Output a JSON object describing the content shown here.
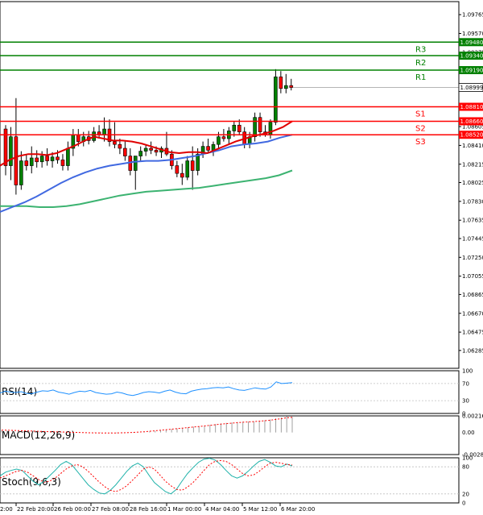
{
  "chart_data": [
    {
      "type": "candlestick",
      "ylim": [
        1.061,
        1.099
      ],
      "y_ticks": [
        "1.09765",
        "1.09570",
        "1.09375",
        "1.09180",
        "1.08990",
        "1.08795",
        "1.08605",
        "1.08410",
        "1.08215",
        "1.08025",
        "1.07830",
        "1.07635",
        "1.07445",
        "1.07250",
        "1.07055",
        "1.06865",
        "1.06670",
        "1.06475",
        "1.06285"
      ],
      "x_ticks": [
        "22 Feb 20:00",
        "26 Feb 00:00",
        "27 Feb 08:00",
        "28 Feb 16:00",
        "1 Mar 00:00",
        "4 Mar 04:00",
        "5 Mar 12:00",
        "6 Mar 20:00"
      ],
      "x_ticks_partial_left": "2:00",
      "current_price": "1.08999",
      "levels": [
        {
          "name": "R3",
          "value": 1.0948,
          "label": "1.09480",
          "color": "#008000"
        },
        {
          "name": "R2",
          "value": 1.0934,
          "label": "1.09340",
          "color": "#008000"
        },
        {
          "name": "R1",
          "value": 1.0919,
          "label": "1.09190",
          "color": "#008000"
        },
        {
          "name": "S1",
          "value": 1.0881,
          "label": "1.08810",
          "color": "#ff0000"
        },
        {
          "name": "S2",
          "value": 1.0866,
          "label": "1.08660",
          "color": "#ff0000"
        },
        {
          "name": "S3",
          "value": 1.0852,
          "label": "1.08520",
          "color": "#ff0000"
        }
      ],
      "candles": [
        [
          1.0858,
          1.0862,
          1.081,
          1.082
        ],
        [
          1.082,
          1.086,
          1.0805,
          1.085
        ],
        [
          1.085,
          1.089,
          1.079,
          1.08
        ],
        [
          1.08,
          1.0835,
          1.0795,
          1.0825
        ],
        [
          1.0825,
          1.0832,
          1.0815,
          1.082
        ],
        [
          1.082,
          1.084,
          1.0812,
          1.0828
        ],
        [
          1.0828,
          1.0836,
          1.0818,
          1.0824
        ],
        [
          1.0824,
          1.0835,
          1.0818,
          1.083
        ],
        [
          1.083,
          1.0838,
          1.082,
          1.0825
        ],
        [
          1.0825,
          1.0834,
          1.0818,
          1.0829
        ],
        [
          1.0829,
          1.0836,
          1.0822,
          1.0826
        ],
        [
          1.0826,
          1.0832,
          1.0815,
          1.082
        ],
        [
          1.082,
          1.0845,
          1.0815,
          1.0838
        ],
        [
          1.0838,
          1.0858,
          1.083,
          1.0852
        ],
        [
          1.0852,
          1.0858,
          1.084,
          1.0845
        ],
        [
          1.0845,
          1.0855,
          1.084,
          1.085
        ],
        [
          1.085,
          1.0856,
          1.0842,
          1.0846
        ],
        [
          1.0846,
          1.086,
          1.0844,
          1.0855
        ],
        [
          1.0855,
          1.0862,
          1.0848,
          1.0852
        ],
        [
          1.0852,
          1.087,
          1.0845,
          1.0858
        ],
        [
          1.0858,
          1.0868,
          1.084,
          1.0845
        ],
        [
          1.0845,
          1.0865,
          1.0838,
          1.0842
        ],
        [
          1.0842,
          1.0848,
          1.0832,
          1.0838
        ],
        [
          1.0838,
          1.0845,
          1.0825,
          1.083
        ],
        [
          1.083,
          1.0838,
          1.081,
          1.0815
        ],
        [
          1.0815,
          1.083,
          1.0795,
          1.083
        ],
        [
          1.083,
          1.084,
          1.0825,
          1.0835
        ],
        [
          1.0835,
          1.0842,
          1.083,
          1.0838
        ],
        [
          1.0838,
          1.0845,
          1.0832,
          1.0836
        ],
        [
          1.0836,
          1.084,
          1.083,
          1.0834
        ],
        [
          1.0834,
          1.084,
          1.0828,
          1.0838
        ],
        [
          1.0838,
          1.0855,
          1.083,
          1.0832
        ],
        [
          1.0832,
          1.0836,
          1.0816,
          1.082
        ],
        [
          1.082,
          1.0825,
          1.0808,
          1.0812
        ],
        [
          1.0812,
          1.0822,
          1.08,
          1.0808
        ],
        [
          1.0808,
          1.083,
          1.0805,
          1.0825
        ],
        [
          1.0825,
          1.084,
          1.0795,
          1.0815
        ],
        [
          1.0815,
          1.0838,
          1.081,
          1.0832
        ],
        [
          1.0832,
          1.0845,
          1.0828,
          1.084
        ],
        [
          1.084,
          1.0848,
          1.0834,
          1.0836
        ],
        [
          1.0836,
          1.0845,
          1.083,
          1.0842
        ],
        [
          1.0842,
          1.0855,
          1.0838,
          1.085
        ],
        [
          1.085,
          1.0858,
          1.0845,
          1.0848
        ],
        [
          1.0848,
          1.086,
          1.0842,
          1.0856
        ],
        [
          1.0856,
          1.0866,
          1.085,
          1.0862
        ],
        [
          1.0862,
          1.0868,
          1.0852,
          1.0855
        ],
        [
          1.0855,
          1.086,
          1.0838,
          1.0842
        ],
        [
          1.0842,
          1.0855,
          1.0838,
          1.085
        ],
        [
          1.085,
          1.0875,
          1.0845,
          1.087
        ],
        [
          1.087,
          1.0875,
          1.085,
          1.0855
        ],
        [
          1.0855,
          1.0862,
          1.085,
          1.0852
        ],
        [
          1.0852,
          1.0868,
          1.0848,
          1.0865
        ],
        [
          1.0865,
          1.092,
          1.0862,
          1.0912
        ],
        [
          1.0912,
          1.0918,
          1.0895,
          1.09
        ],
        [
          1.09,
          1.0915,
          1.0895,
          1.0903
        ],
        [
          1.0903,
          1.091,
          1.0898,
          1.0901
        ]
      ],
      "ma_red": [
        1.082,
        1.0826,
        1.083,
        1.0832,
        1.0832,
        1.0831,
        1.0833,
        1.0837,
        1.0841,
        1.0846,
        1.085,
        1.0848,
        1.0846,
        1.0846,
        1.0845,
        1.0843,
        1.084,
        1.0837,
        1.0834,
        1.0833,
        1.0834,
        1.0834,
        1.0833,
        1.0837,
        1.0841,
        1.0845,
        1.0848,
        1.0851,
        1.0853,
        1.0856,
        1.086,
        1.0866
      ],
      "ma_blue": [
        1.0772,
        1.0777,
        1.0782,
        1.0788,
        1.0795,
        1.0802,
        1.0808,
        1.0813,
        1.0817,
        1.082,
        1.0822,
        1.0824,
        1.0825,
        1.0825,
        1.0826,
        1.0828,
        1.083,
        1.0833,
        1.0836,
        1.084,
        1.0842,
        1.0843,
        1.0845,
        1.0849,
        1.0852
      ],
      "ma_green": [
        1.0778,
        1.0778,
        1.0778,
        1.0777,
        1.0777,
        1.0778,
        1.078,
        1.0783,
        1.0786,
        1.0789,
        1.0791,
        1.0793,
        1.0794,
        1.0795,
        1.0796,
        1.0797,
        1.0799,
        1.0801,
        1.0803,
        1.0805,
        1.0807,
        1.081,
        1.0815
      ]
    },
    {
      "type": "line",
      "name": "RSI(14)",
      "ylim": [
        0,
        100
      ],
      "y_ticks": [
        "100",
        "70",
        "30",
        "0"
      ],
      "color": "#1e90ff",
      "values": [
        48,
        52,
        50,
        49,
        51,
        47,
        46,
        50,
        53,
        52,
        55,
        50,
        48,
        45,
        49,
        52,
        51,
        54,
        49,
        47,
        45,
        46,
        50,
        48,
        44,
        42,
        45,
        49,
        51,
        50,
        48,
        52,
        55,
        50,
        47,
        46,
        52,
        55,
        57,
        58,
        60,
        61,
        60,
        62,
        58,
        55,
        54,
        57,
        60,
        58,
        57,
        62,
        74,
        70,
        71,
        72
      ]
    },
    {
      "type": "bar",
      "name": "MACD(12,26,9)",
      "ylim": [
        -0.002879,
        0.002165
      ],
      "y_ticks": [
        "0.002165",
        "0.00",
        "-0.002879"
      ],
      "histogram": [
        0.0003,
        0.00028,
        0.00025,
        0.0002,
        0.00018,
        0.00016,
        0.00015,
        0.00014,
        0.00012,
        0.00012,
        0.0001,
        8e-05,
        6e-05,
        4e-05,
        2e-05,
        0.0,
        -2e-05,
        -4e-05,
        -6e-05,
        -8e-05,
        -0.0001,
        -0.0001,
        -8e-05,
        -6e-05,
        -4e-05,
        2e-05,
        8e-05,
        0.00014,
        0.0002,
        0.00028,
        0.00036,
        0.00044,
        0.00052,
        0.0006,
        0.00068,
        0.00075,
        0.00082,
        0.0009,
        0.001,
        0.0011,
        0.00118,
        0.00125,
        0.0013,
        0.00135,
        0.0014,
        0.00142,
        0.00145,
        0.0015,
        0.0016,
        0.0017,
        0.00185,
        0.00195,
        0.0021,
        0.002
      ],
      "signal": [
        0.0003,
        0.00029,
        0.00027,
        0.00025,
        0.00022,
        0.0002,
        0.00017,
        0.00015,
        0.00012,
        0.0001,
        8e-05,
        6e-05,
        4e-05,
        2e-05,
        0.0,
        -2e-05,
        -4e-05,
        -5e-05,
        -6e-05,
        -7e-05,
        -7e-05,
        -6e-05,
        -4e-05,
        -2e-05,
        1e-05,
        5e-05,
        0.0001,
        0.00016,
        0.00022,
        0.00029,
        0.00036,
        0.00043,
        0.0005,
        0.00057,
        0.00064,
        0.00071,
        0.00078,
        0.00085,
        0.00093,
        0.00101,
        0.00109,
        0.00116,
        0.00122,
        0.00128,
        0.00133,
        0.00138,
        0.00142,
        0.00147,
        0.00153,
        0.0016,
        0.0017,
        0.0018,
        0.00192,
        0.00198
      ]
    },
    {
      "type": "line",
      "name": "Stoch(9,6,3)",
      "ylim": [
        0,
        100
      ],
      "y_ticks": [
        "100",
        "80",
        "20",
        "0"
      ],
      "series": [
        {
          "color": "#20b2aa",
          "values": [
            60,
            68,
            72,
            75,
            72,
            60,
            48,
            40,
            48,
            60,
            72,
            85,
            92,
            85,
            70,
            55,
            40,
            30,
            22,
            20,
            28,
            40,
            55,
            70,
            82,
            88,
            80,
            62,
            45,
            35,
            25,
            20,
            30,
            48,
            65,
            78,
            90,
            97,
            99,
            95,
            85,
            72,
            60,
            55,
            60,
            70,
            82,
            92,
            96,
            90,
            82,
            80,
            86,
            82
          ]
        },
        {
          "color": "#ff0000",
          "values": [
            55,
            60,
            65,
            70,
            72,
            68,
            60,
            52,
            46,
            48,
            55,
            65,
            75,
            82,
            85,
            80,
            70,
            58,
            46,
            36,
            28,
            25,
            30,
            38,
            50,
            62,
            75,
            80,
            75,
            62,
            48,
            38,
            30,
            28,
            35,
            45,
            58,
            72,
            85,
            92,
            94,
            92,
            85,
            75,
            65,
            60,
            62,
            70,
            80,
            88,
            90,
            88,
            85,
            84
          ]
        }
      ]
    }
  ]
}
